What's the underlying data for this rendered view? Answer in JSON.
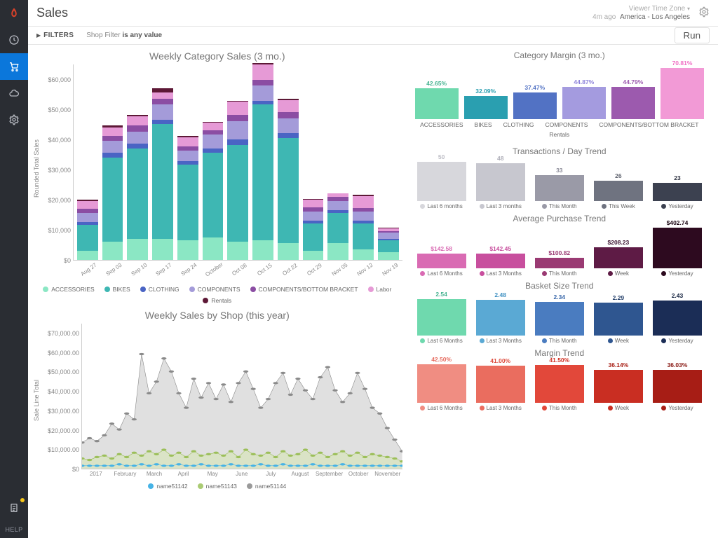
{
  "header": {
    "title": "Sales",
    "timeAgo": "4m ago",
    "tzLabel": "Viewer Time Zone",
    "tz": "America - Los Angeles"
  },
  "filter": {
    "label": "FILTERS",
    "text": "Shop Filter",
    "value": "is any value",
    "run": "Run"
  },
  "sidebar": {
    "help": "HELP"
  },
  "weekly": {
    "title": "Weekly Category Sales (3 mo.)",
    "ylabel": "Rounded Total Sales",
    "ymax": 65000,
    "yticks": [
      "$0",
      "$10,000",
      "$20,000",
      "$30,000",
      "$40,000",
      "$50,000",
      "$60,000"
    ],
    "categories": [
      "Aug 27",
      "Sep 03",
      "Sep 10",
      "Sep 17",
      "Sep 24",
      "October",
      "Oct 08",
      "Oct 15",
      "Oct 22",
      "Oct 29",
      "Nov 05",
      "Nov 12",
      "Nov 19"
    ],
    "series": [
      {
        "name": "ACCESSORIES",
        "color": "#8be7c4"
      },
      {
        "name": "BIKES",
        "color": "#3eb7b3"
      },
      {
        "name": "CLOTHING",
        "color": "#4a64c4"
      },
      {
        "name": "COMPONENTS",
        "color": "#a49bd9"
      },
      {
        "name": "COMPONENTS/BOTTOM BRACKET",
        "color": "#8b4da3"
      },
      {
        "name": "Labor",
        "color": "#e69ad6"
      },
      {
        "name": "Rentals",
        "color": "#5d1836"
      }
    ],
    "stacks": [
      [
        3000,
        8500,
        1000,
        3000,
        1500,
        2500,
        500
      ],
      [
        6000,
        28000,
        1500,
        4000,
        1500,
        3000,
        500
      ],
      [
        7000,
        30000,
        1500,
        4000,
        2000,
        3000,
        500
      ],
      [
        7000,
        38000,
        1500,
        5000,
        2000,
        2000,
        1500
      ],
      [
        6500,
        25000,
        1200,
        3500,
        1500,
        3000,
        400
      ],
      [
        7500,
        28000,
        1500,
        4500,
        1500,
        2500,
        200
      ],
      [
        6000,
        32000,
        2000,
        6000,
        2000,
        4500,
        200
      ],
      [
        6500,
        45000,
        1200,
        5000,
        2000,
        5000,
        500
      ],
      [
        5500,
        35000,
        1500,
        5000,
        2000,
        4000,
        300
      ],
      [
        3000,
        9000,
        1000,
        3000,
        1500,
        2500,
        200
      ],
      [
        5500,
        10000,
        1000,
        3000,
        1500,
        1000,
        100
      ],
      [
        3500,
        8500,
        1000,
        3000,
        1200,
        4000,
        300
      ],
      [
        2500,
        4000,
        500,
        2000,
        500,
        1000,
        100
      ]
    ]
  },
  "shop": {
    "title": "Weekly Sales by Shop (this year)",
    "ylabel": "Sale Line Total",
    "ymax": 75000,
    "yticks": [
      "$0",
      "$10,000.00",
      "$20,000.00",
      "$30,000.00",
      "$40,000.00",
      "$50,000.00",
      "$60,000.00",
      "$70,000.00"
    ],
    "xlabels": [
      "2017",
      "February",
      "March",
      "April",
      "May",
      "June",
      "July",
      "August",
      "September",
      "October",
      "November"
    ],
    "series": [
      {
        "name": "name51142",
        "color": "#46b3e6"
      },
      {
        "name": "name51143",
        "color": "#aacb73"
      },
      {
        "name": "name51144",
        "color": "#9a9a9a"
      }
    ],
    "lines": {
      "gray": [
        18,
        21,
        19,
        23,
        31,
        27,
        38,
        34,
        79,
        52,
        60,
        76,
        67,
        52,
        42,
        62,
        49,
        59,
        48,
        58,
        46,
        59,
        67,
        55,
        42,
        48,
        59,
        66,
        51,
        62,
        54,
        48,
        63,
        70,
        54,
        46,
        52,
        66,
        55,
        42,
        38,
        28,
        20,
        12
      ],
      "green": [
        7,
        6,
        8,
        9,
        7,
        10,
        8,
        11,
        9,
        12,
        10,
        13,
        9,
        11,
        8,
        12,
        9,
        10,
        11,
        9,
        12,
        8,
        13,
        10,
        9,
        11,
        8,
        12,
        9,
        10,
        13,
        9,
        11,
        8,
        10,
        12,
        9,
        11,
        8,
        10,
        9,
        8,
        7,
        5
      ],
      "blue": [
        2,
        2,
        2,
        2,
        2,
        3,
        2,
        2,
        3,
        2,
        3,
        2,
        2,
        3,
        2,
        2,
        3,
        2,
        2,
        2,
        3,
        2,
        2,
        2,
        3,
        2,
        2,
        3,
        2,
        2,
        2,
        3,
        2,
        2,
        2,
        3,
        2,
        2,
        2,
        2,
        2,
        2,
        2,
        2
      ]
    }
  },
  "margin": {
    "title": "Category Margin (3 mo.)",
    "max": 80,
    "bars": [
      {
        "label": "ACCESSORIES",
        "value": 42.65,
        "text": "42.65%",
        "color": "#6fd9ae",
        "tcolor": "#46b391"
      },
      {
        "label": "BIKES",
        "value": 32.09,
        "text": "32.09%",
        "color": "#2a9fb0",
        "tcolor": "#2a9fb0"
      },
      {
        "label": "CLOTHING",
        "value": 37.47,
        "text": "37.47%",
        "color": "#5272c4",
        "tcolor": "#5272c4"
      },
      {
        "label": "COMPONENTS",
        "value": 44.87,
        "text": "44.87%",
        "color": "#a49bdf",
        "tcolor": "#8b80d9"
      },
      {
        "label": "COMPONENTS/BOTTOM BRACKET",
        "value": 44.79,
        "text": "44.79%",
        "color": "#9c5aae",
        "tcolor": "#9c5aae"
      },
      {
        "label": "Rentals",
        "value": 70.81,
        "text": "70.81%",
        "color": "#f29ad6",
        "tcolor": "#f06fc5"
      }
    ]
  },
  "trends": [
    {
      "title": "Transactions / Day Trend",
      "max": 55,
      "bars": [
        {
          "label": "Last 6 months",
          "value": 50,
          "text": "50",
          "color": "#d7d7dc",
          "tcolor": "#bdbdc5"
        },
        {
          "label": "Last 3 months",
          "value": 48,
          "text": "48",
          "color": "#c7c7cf",
          "tcolor": "#aeaeb8"
        },
        {
          "label": "This Month",
          "value": 33,
          "text": "33",
          "color": "#9a9aa7",
          "tcolor": "#8a8a97"
        },
        {
          "label": "This Week",
          "value": 26,
          "text": "26",
          "color": "#6f7380",
          "tcolor": "#5f636f"
        },
        {
          "label": "Yesterday",
          "value": 23,
          "text": "23",
          "color": "#3c4150",
          "tcolor": "#2c3140"
        }
      ]
    },
    {
      "title": "Average Purchase Trend",
      "max": 430,
      "bars": [
        {
          "label": "Last 6 Months",
          "value": 142.58,
          "text": "$142.58",
          "color": "#d96bb3",
          "tcolor": "#d96bb3"
        },
        {
          "label": "Last 3 Months",
          "value": 142.45,
          "text": "$142.45",
          "color": "#c84f9e",
          "tcolor": "#c84f9e"
        },
        {
          "label": "This Month",
          "value": 100.82,
          "text": "$100.82",
          "color": "#9a3a73",
          "tcolor": "#9a3a73"
        },
        {
          "label": "Week",
          "value": 208.23,
          "text": "$208.23",
          "color": "#5e1b45",
          "tcolor": "#3c1230"
        },
        {
          "label": "Yesterday",
          "value": 402.74,
          "text": "$402.74",
          "color": "#2d0a1f",
          "tcolor": "#1a0512"
        }
      ]
    },
    {
      "title": "Basket Size Trend",
      "max": 3,
      "bars": [
        {
          "label": "Last 6 Months",
          "value": 2.54,
          "text": "2.54",
          "color": "#6fd9ae",
          "tcolor": "#46b391"
        },
        {
          "label": "Last 3 Months",
          "value": 2.48,
          "text": "2.48",
          "color": "#5aa9d4",
          "tcolor": "#3c8fc1"
        },
        {
          "label": "This Month",
          "value": 2.34,
          "text": "2.34",
          "color": "#4a7cc0",
          "tcolor": "#3766a9"
        },
        {
          "label": "Week",
          "value": 2.29,
          "text": "2.29",
          "color": "#2f5690",
          "tcolor": "#233f6a"
        },
        {
          "label": "Yesterday",
          "value": 2.43,
          "text": "2.43",
          "color": "#1b2d56",
          "tcolor": "#13213e"
        }
      ]
    },
    {
      "title": "Margin Trend",
      "max": 48,
      "bars": [
        {
          "label": "Last 6 Months",
          "value": 42.5,
          "text": "42.50%",
          "color": "#f08d82",
          "tcolor": "#e66b5f"
        },
        {
          "label": "Last 3 Months",
          "value": 41.0,
          "text": "41.00%",
          "color": "#ea6d5f",
          "tcolor": "#de4c3e"
        },
        {
          "label": "This Month",
          "value": 41.5,
          "text": "41.50%",
          "color": "#e2483a",
          "tcolor": "#d02f21"
        },
        {
          "label": "Week",
          "value": 36.14,
          "text": "36.14%",
          "color": "#c92e22",
          "tcolor": "#a81f15"
        },
        {
          "label": "Yesterday",
          "value": 36.03,
          "text": "36.03%",
          "color": "#a71d15",
          "tcolor": "#86140e"
        }
      ]
    }
  ]
}
